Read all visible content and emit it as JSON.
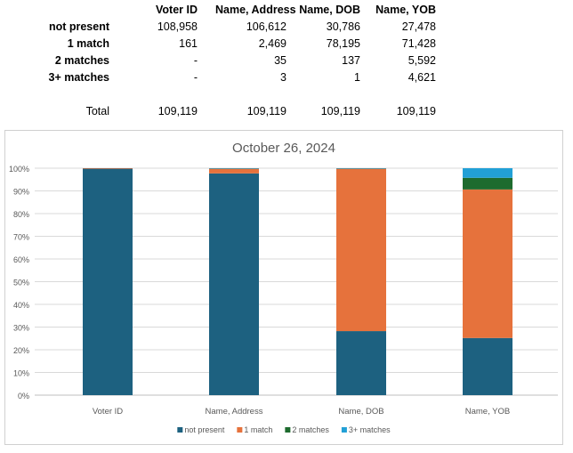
{
  "table": {
    "columns": [
      "Voter ID",
      "Name, Address",
      "Name, DOB",
      "Name, YOB"
    ],
    "rows": [
      {
        "label": "not present",
        "values": [
          "108,958",
          "106,612",
          "30,786",
          "27,478"
        ]
      },
      {
        "label": "1 match",
        "values": [
          "161",
          "2,469",
          "78,195",
          "71,428"
        ]
      },
      {
        "label": "2 matches",
        "values": [
          "-",
          "35",
          "137",
          "5,592"
        ]
      },
      {
        "label": "3+ matches",
        "values": [
          "-",
          "3",
          "1",
          "4,621"
        ]
      }
    ],
    "total": {
      "label": "Total",
      "values": [
        "109,119",
        "109,119",
        "109,119",
        "109,119"
      ]
    }
  },
  "chart_data": {
    "type": "bar",
    "stacked": "percent",
    "title": "October 26, 2024",
    "categories": [
      "Voter ID",
      "Name, Address",
      "Name, DOB",
      "Name, YOB"
    ],
    "series": [
      {
        "name": "not present",
        "values": [
          108958,
          106612,
          30786,
          27478
        ],
        "color": "#1d6180"
      },
      {
        "name": "1 match",
        "values": [
          161,
          2469,
          78195,
          71428
        ],
        "color": "#e6723c"
      },
      {
        "name": "2 matches",
        "values": [
          0,
          35,
          137,
          5592
        ],
        "color": "#1e6b2e"
      },
      {
        "name": "3+ matches",
        "values": [
          0,
          3,
          1,
          4621
        ],
        "color": "#22a0d6"
      }
    ],
    "yticks": [
      "0%",
      "10%",
      "20%",
      "30%",
      "40%",
      "50%",
      "60%",
      "70%",
      "80%",
      "90%",
      "100%"
    ],
    "ylim": [
      0,
      100
    ],
    "grid": true,
    "legend": "bottom"
  }
}
